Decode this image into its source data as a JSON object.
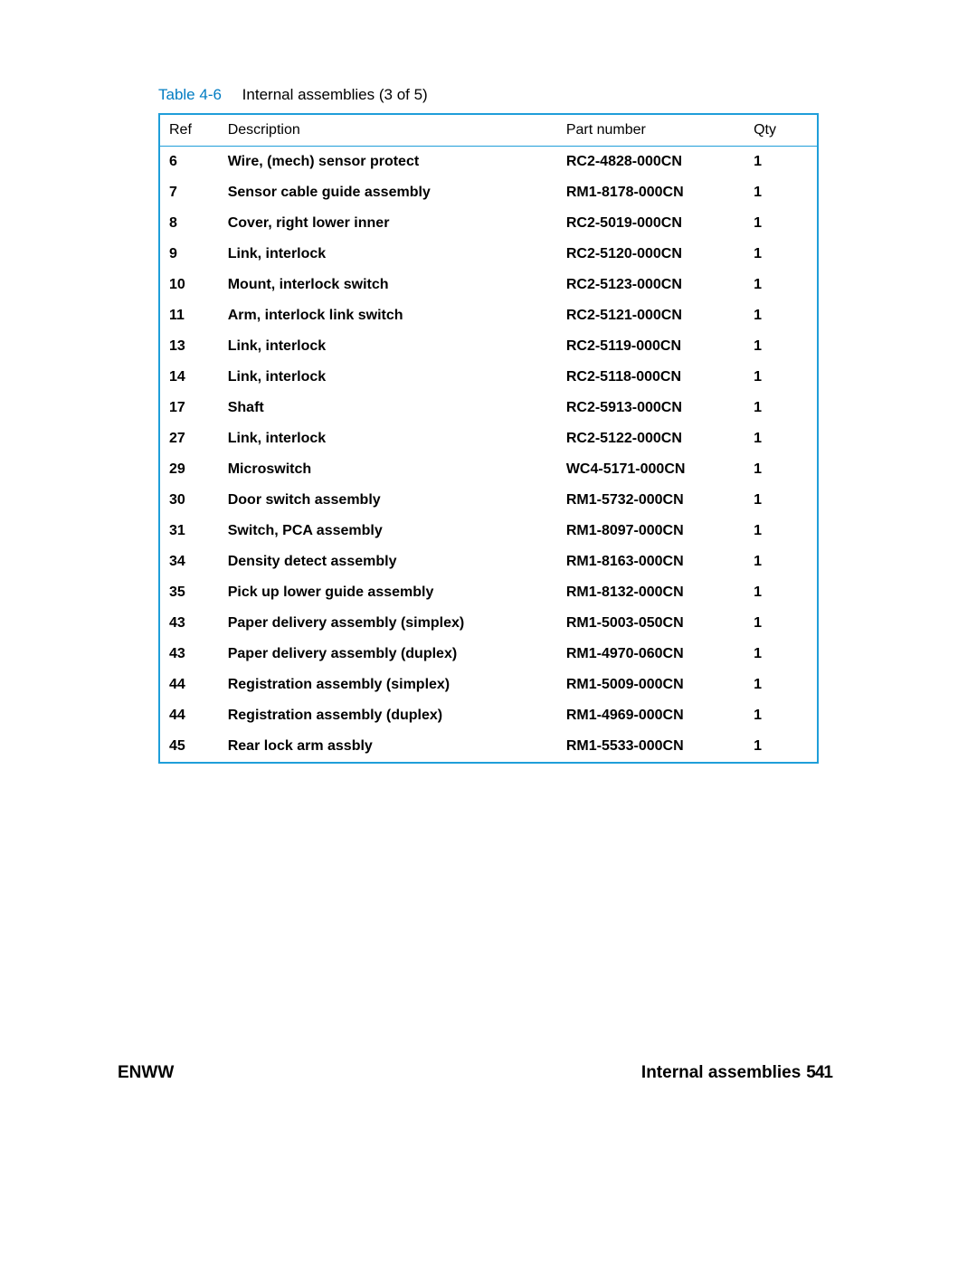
{
  "table": {
    "label": "Table 4-6",
    "title": "Internal assemblies (3 of 5)",
    "columns": [
      "Ref",
      "Description",
      "Part number",
      "Qty"
    ],
    "border_color": "#1f9ed9",
    "label_color": "#007cc2",
    "rows": [
      {
        "ref": "6",
        "desc": "Wire, (mech) sensor protect",
        "part": "RC2-4828-000CN",
        "qty": "1"
      },
      {
        "ref": "7",
        "desc": "Sensor cable guide assembly",
        "part": "RM1-8178-000CN",
        "qty": "1"
      },
      {
        "ref": "8",
        "desc": "Cover, right lower inner",
        "part": "RC2-5019-000CN",
        "qty": "1"
      },
      {
        "ref": "9",
        "desc": "Link, interlock",
        "part": "RC2-5120-000CN",
        "qty": "1"
      },
      {
        "ref": "10",
        "desc": "Mount, interlock switch",
        "part": "RC2-5123-000CN",
        "qty": "1"
      },
      {
        "ref": "11",
        "desc": "Arm, interlock link switch",
        "part": "RC2-5121-000CN",
        "qty": "1"
      },
      {
        "ref": "13",
        "desc": "Link, interlock",
        "part": "RC2-5119-000CN",
        "qty": "1"
      },
      {
        "ref": "14",
        "desc": "Link, interlock",
        "part": "RC2-5118-000CN",
        "qty": "1"
      },
      {
        "ref": "17",
        "desc": "Shaft",
        "part": "RC2-5913-000CN",
        "qty": "1"
      },
      {
        "ref": "27",
        "desc": "Link, interlock",
        "part": "RC2-5122-000CN",
        "qty": "1"
      },
      {
        "ref": "29",
        "desc": "Microswitch",
        "part": "WC4-5171-000CN",
        "qty": "1"
      },
      {
        "ref": "30",
        "desc": "Door switch assembly",
        "part": "RM1-5732-000CN",
        "qty": "1"
      },
      {
        "ref": "31",
        "desc": "Switch, PCA assembly",
        "part": "RM1-8097-000CN",
        "qty": "1"
      },
      {
        "ref": "34",
        "desc": "Density detect assembly",
        "part": "RM1-8163-000CN",
        "qty": "1"
      },
      {
        "ref": "35",
        "desc": "Pick up lower guide assembly",
        "part": "RM1-8132-000CN",
        "qty": "1"
      },
      {
        "ref": "43",
        "desc": "Paper delivery assembly (simplex)",
        "part": "RM1-5003-050CN",
        "qty": "1"
      },
      {
        "ref": "43",
        "desc": "Paper delivery assembly (duplex)",
        "part": "RM1-4970-060CN",
        "qty": "1"
      },
      {
        "ref": "44",
        "desc": "Registration assembly (simplex)",
        "part": "RM1-5009-000CN",
        "qty": "1"
      },
      {
        "ref": "44",
        "desc": "Registration assembly (duplex)",
        "part": "RM1-4969-000CN",
        "qty": "1"
      },
      {
        "ref": "45",
        "desc": "Rear lock arm assbly",
        "part": "RM1-5533-000CN",
        "qty": "1"
      }
    ]
  },
  "footer": {
    "left": "ENWW",
    "right_label": "Internal assemblies",
    "page_number": "541"
  }
}
